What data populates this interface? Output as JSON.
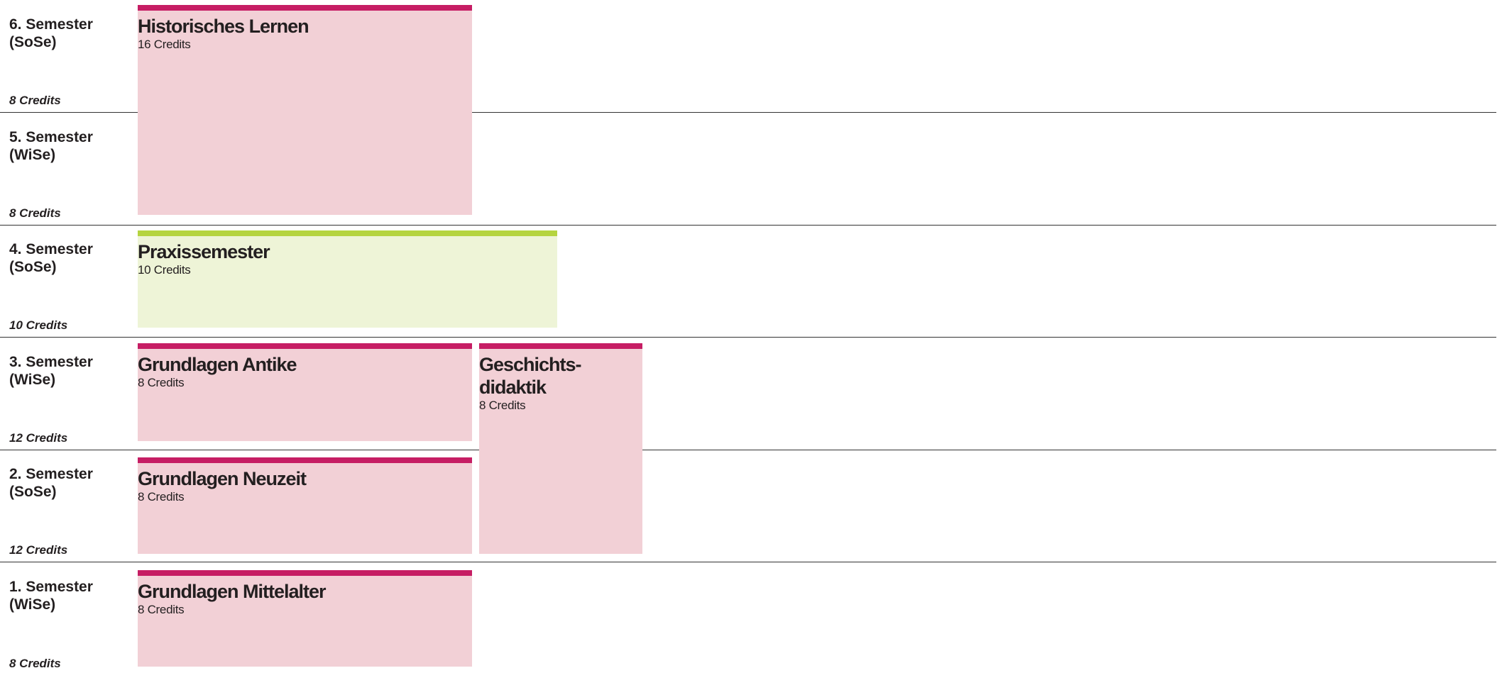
{
  "semesters": [
    {
      "name": "6. Semester",
      "term": "(SoSe)",
      "credits": "8 Credits"
    },
    {
      "name": "5. Semester",
      "term": "(WiSe)",
      "credits": "8 Credits"
    },
    {
      "name": "4. Semester",
      "term": "(SoSe)",
      "credits": "10 Credits"
    },
    {
      "name": "3. Semester",
      "term": "(WiSe)",
      "credits": "12 Credits"
    },
    {
      "name": "2. Semester",
      "term": "(SoSe)",
      "credits": "12 Credits"
    },
    {
      "name": "1. Semester",
      "term": "(WiSe)",
      "credits": "8 Credits"
    }
  ],
  "modules": [
    {
      "title": "Historisches Lernen",
      "credits": "16 Credits"
    },
    {
      "title": "Praxissemester",
      "credits": "10 Credits"
    },
    {
      "title": "Grundlagen Antike",
      "credits": "8 Credits"
    },
    {
      "title": "Geschichts-didaktik",
      "credits": "8 Credits"
    },
    {
      "title": "Grundlagen Neuzeit",
      "credits": "8 Credits"
    },
    {
      "title": "Grundlagen Mittelalter",
      "credits": "8 Credits"
    }
  ]
}
